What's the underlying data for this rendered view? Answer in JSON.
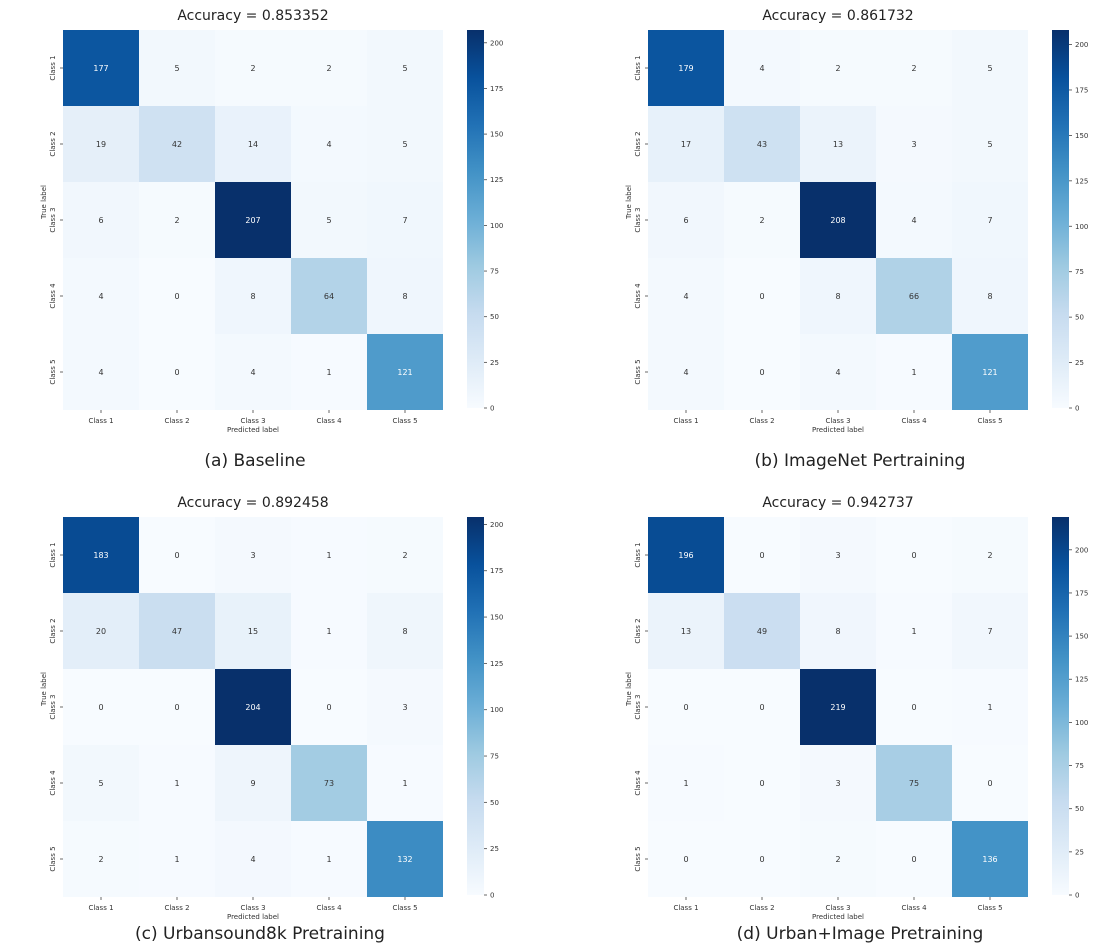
{
  "chart_data": [
    {
      "type": "heatmap",
      "title": "Accuracy =  0.853352",
      "caption": "(a) Baseline",
      "xlabel": "Predicted label",
      "ylabel": "True label",
      "x_categories": [
        "Class 1",
        "Class 2",
        "Class 3",
        "Class 4",
        "Class 5"
      ],
      "y_categories": [
        "Class 1",
        "Class 2",
        "Class 3",
        "Class 4",
        "Class 5"
      ],
      "matrix": [
        [
          177,
          5,
          2,
          2,
          5
        ],
        [
          19,
          42,
          14,
          4,
          5
        ],
        [
          6,
          2,
          207,
          5,
          7
        ],
        [
          4,
          0,
          8,
          64,
          8
        ],
        [
          4,
          0,
          4,
          1,
          121
        ]
      ],
      "colorbar": {
        "range": [
          0,
          207
        ],
        "ticks": [
          "200",
          "175",
          "150",
          "125",
          "100",
          "75",
          "50",
          "25",
          "0"
        ],
        "colormap": "Blues"
      }
    },
    {
      "type": "heatmap",
      "title": "Accuracy =  0.861732",
      "caption": "(b) ImageNet Pertraining",
      "xlabel": "Predicted label",
      "ylabel": "True label",
      "x_categories": [
        "Class 1",
        "Class 2",
        "Class 3",
        "Class 4",
        "Class 5"
      ],
      "y_categories": [
        "Class 1",
        "Class 2",
        "Class 3",
        "Class 4",
        "Class 5"
      ],
      "matrix": [
        [
          179,
          4,
          2,
          2,
          5
        ],
        [
          17,
          43,
          13,
          3,
          5
        ],
        [
          6,
          2,
          208,
          4,
          7
        ],
        [
          4,
          0,
          8,
          66,
          8
        ],
        [
          4,
          0,
          4,
          1,
          121
        ]
      ],
      "colorbar": {
        "range": [
          0,
          208
        ],
        "ticks": [
          "200",
          "175",
          "150",
          "125",
          "100",
          "75",
          "50",
          "25",
          "0"
        ],
        "colormap": "Blues"
      }
    },
    {
      "type": "heatmap",
      "title": "Accuracy =  0.892458",
      "caption": "(c) Urbansound8k Pretraining",
      "xlabel": "Predicted label",
      "ylabel": "True label",
      "x_categories": [
        "Class 1",
        "Class 2",
        "Class 3",
        "Class 4",
        "Class 5"
      ],
      "y_categories": [
        "Class 1",
        "Class 2",
        "Class 3",
        "Class 4",
        "Class 5"
      ],
      "matrix": [
        [
          183,
          0,
          3,
          1,
          2
        ],
        [
          20,
          47,
          15,
          1,
          8
        ],
        [
          0,
          0,
          204,
          0,
          3
        ],
        [
          5,
          1,
          9,
          73,
          1
        ],
        [
          2,
          1,
          4,
          1,
          132
        ]
      ],
      "colorbar": {
        "range": [
          0,
          204
        ],
        "ticks": [
          "200",
          "175",
          "150",
          "125",
          "100",
          "75",
          "50",
          "25",
          "0"
        ],
        "colormap": "Blues"
      }
    },
    {
      "type": "heatmap",
      "title": "Accuracy =  0.942737",
      "caption": "(d) Urban+Image Pretraining",
      "xlabel": "Predicted label",
      "ylabel": "True label",
      "x_categories": [
        "Class 1",
        "Class 2",
        "Class 3",
        "Class 4",
        "Class 5"
      ],
      "y_categories": [
        "Class 1",
        "Class 2",
        "Class 3",
        "Class 4",
        "Class 5"
      ],
      "matrix": [
        [
          196,
          0,
          3,
          0,
          2
        ],
        [
          13,
          49,
          8,
          1,
          7
        ],
        [
          0,
          0,
          219,
          0,
          1
        ],
        [
          1,
          0,
          3,
          75,
          0
        ],
        [
          0,
          0,
          2,
          0,
          136
        ]
      ],
      "colorbar": {
        "range": [
          0,
          219
        ],
        "ticks": [
          "200",
          "175",
          "150",
          "125",
          "100",
          "75",
          "50",
          "25",
          "0"
        ],
        "colormap": "Blues"
      }
    }
  ]
}
